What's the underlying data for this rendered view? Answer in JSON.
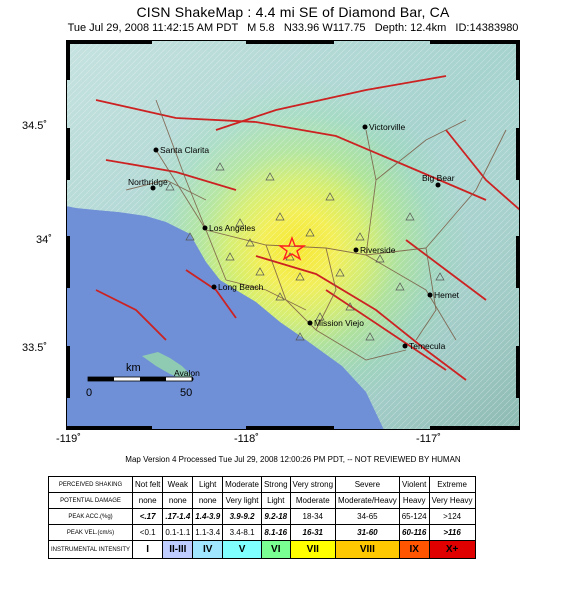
{
  "title": "CISN ShakeMap : 4.4 mi SE of Diamond Bar, CA",
  "subtitle": "Tue Jul 29, 2008 11:42:15 AM PDT   M 5.8   N33.96 W117.75   Depth: 12.4km   ID:14383980",
  "map": {
    "lat_labels": [
      "34.5˚",
      "34˚",
      "33.5˚"
    ],
    "lon_labels": [
      "-119˚",
      "-118˚",
      "-117˚"
    ],
    "cities": [
      "Victorville",
      "Santa Clarita",
      "Big Bear",
      "Northridge",
      "Los Angeles",
      "Riverside",
      "Long Beach",
      "Hemet",
      "Mission Viejo",
      "Temecula",
      "Avalon"
    ],
    "scale_unit": "km",
    "scale_ticks": [
      "0",
      "50"
    ],
    "epicenter": {
      "lat": 33.96,
      "lon": -117.75
    },
    "colors": {
      "ocean": "#6f8fd6",
      "land": "#9ed5c0",
      "shaking_core": "#f5ef3c",
      "fault": "#cc2222",
      "road": "#7a5b44",
      "epicenter": "#ff3030"
    }
  },
  "version_text": "Map Version 4 Processed Tue Jul 29, 2008 12:00:26 PM PDT, -- NOT REVIEWED BY HUMAN",
  "legend": {
    "perceived_label": "PERCEIVED SHAKING",
    "perceived": [
      "Not felt",
      "Weak",
      "Light",
      "Moderate",
      "Strong",
      "Very strong",
      "Severe",
      "Violent",
      "Extreme"
    ],
    "damage_label": "POTENTIAL DAMAGE",
    "damage": [
      "none",
      "none",
      "none",
      "Very light",
      "Light",
      "Moderate",
      "Moderate/Heavy",
      "Heavy",
      "Very Heavy"
    ],
    "acc_label": "PEAK ACC.(%g)",
    "acc": [
      "<.17",
      ".17-1.4",
      "1.4-3.9",
      "3.9-9.2",
      "9.2-18",
      "18-34",
      "34-65",
      "65-124",
      ">124"
    ],
    "vel_label": "PEAK VEL.(cm/s)",
    "vel": [
      "<0.1",
      "0.1-1.1",
      "1.1-3.4",
      "3.4-8.1",
      "8.1-16",
      "16-31",
      "31-60",
      "60-116",
      ">116"
    ],
    "int_label": "INSTRUMENTAL INTENSITY",
    "intensity": [
      "I",
      "II-III",
      "IV",
      "V",
      "VI",
      "VII",
      "VIII",
      "IX",
      "X+"
    ],
    "intensity_colors": [
      "#ffffff",
      "#bfccff",
      "#a0e6ff",
      "#80ffff",
      "#7aff93",
      "#ffff00",
      "#ffc800",
      "#ff5500",
      "#e00000"
    ]
  }
}
